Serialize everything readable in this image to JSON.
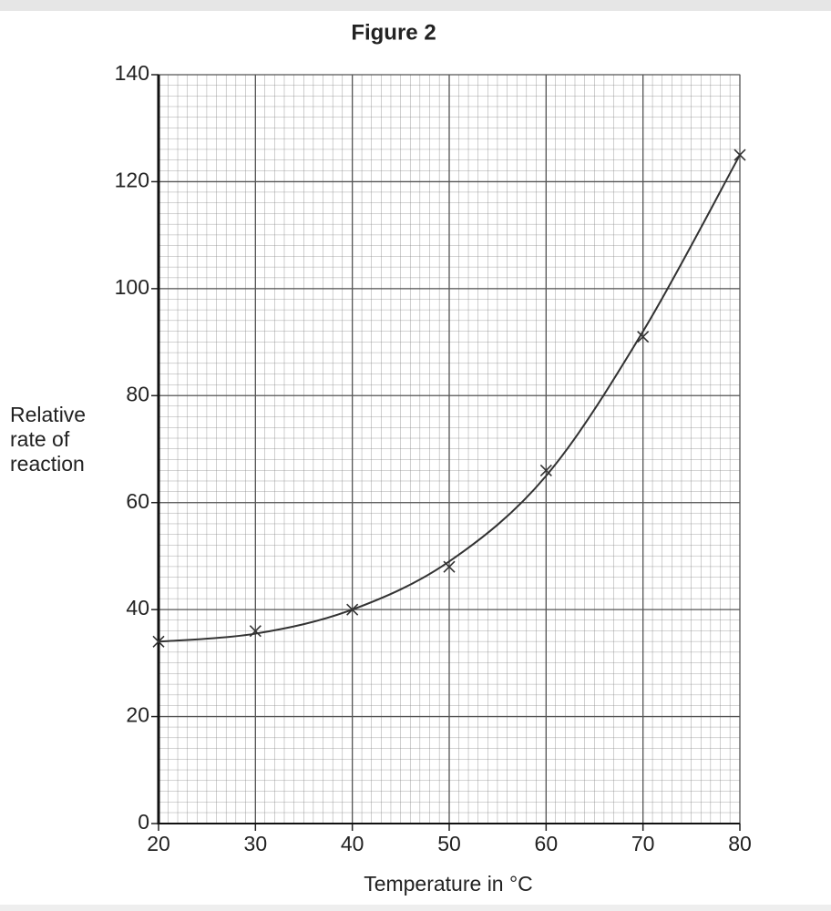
{
  "chart_data": {
    "type": "scatter",
    "title": "Figure 2",
    "x_label": "Temperature in °C",
    "y_label": "Relative rate of reaction",
    "x": [
      20,
      30,
      40,
      50,
      60,
      70,
      80
    ],
    "series": [
      {
        "color": "#333333",
        "marker": "x",
        "values": [
          34,
          36,
          40,
          48,
          66,
          91,
          125
        ]
      },
      {
        "color": "#333333",
        "marker": "line",
        "values": [
          34,
          35.5,
          40,
          49,
          65,
          92,
          125
        ]
      }
    ],
    "xlim": [
      20,
      80
    ],
    "xticks": [
      20,
      30,
      40,
      50,
      60,
      70,
      80
    ],
    "ylim": [
      0,
      140
    ],
    "yticks": [
      0,
      20,
      40,
      60,
      80,
      100,
      120,
      140
    ],
    "grid": true
  }
}
